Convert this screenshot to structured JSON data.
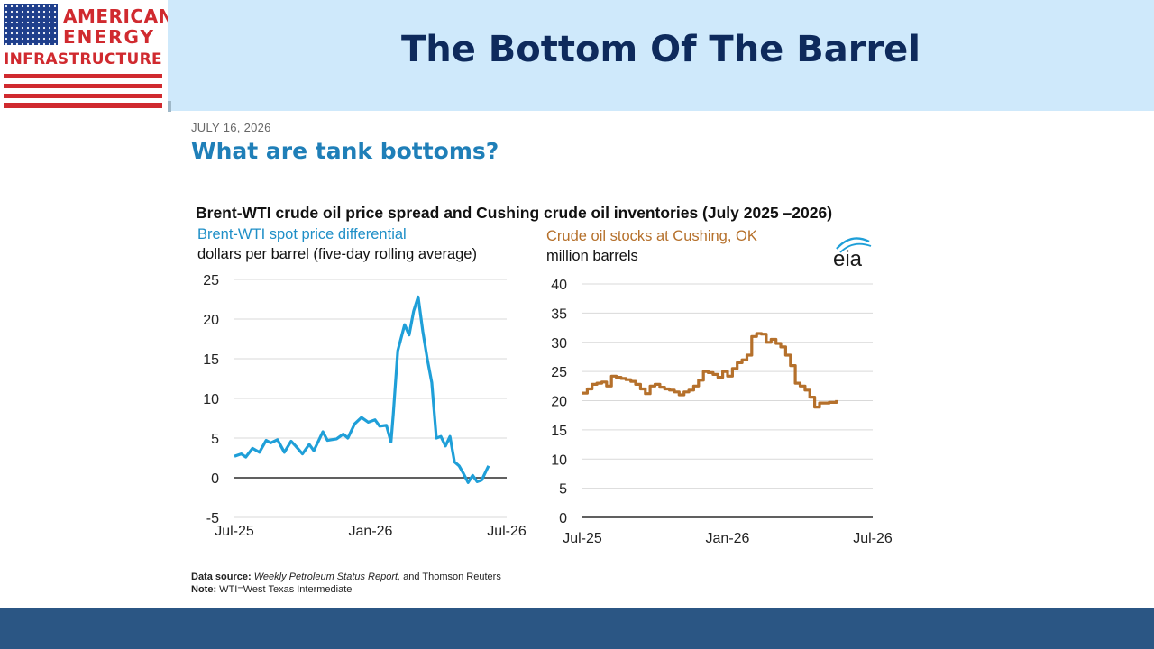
{
  "logo": {
    "line1": "AMERICAN",
    "line2": "ENERGY",
    "line3": "INFRASTRUCTURE"
  },
  "slide_title": "The Bottom Of The Barrel",
  "post": {
    "date": "JULY 16, 2026",
    "question": "What are tank bottoms?"
  },
  "chart_title": "Brent-WTI crude oil price spread and Cushing crude oil inventories (July 2025 –2026)",
  "eia_logo_text": "eia",
  "footnote": {
    "source_label": "Data source:",
    "source_italic": "Weekly Petroleum Status Report,",
    "source_rest": " and Thomson Reuters",
    "note_label": "Note:",
    "note_text": " WTI=West Texas Intermediate"
  },
  "colors": {
    "spread_line": "#1f9fd8",
    "stocks_line": "#b5702b",
    "header_band": "#cfe9fb",
    "footer_bar": "#2b5684"
  },
  "chart_data": [
    {
      "type": "line",
      "subtitle": "Brent-WTI spot price differential",
      "ylabel": "dollars per barrel (five-day rolling average)",
      "ylim": [
        -5,
        25
      ],
      "yticks": [
        25,
        20,
        15,
        10,
        5,
        0,
        -5
      ],
      "xlim": [
        0,
        12
      ],
      "xticks": [
        {
          "label": "Jul-25",
          "x": 0
        },
        {
          "label": "Jan-26",
          "x": 6
        },
        {
          "label": "Jul-26",
          "x": 12
        }
      ],
      "grid": true,
      "series": [
        {
          "values": [
            [
              0,
              2.7
            ],
            [
              0.3,
              3.0
            ],
            [
              0.5,
              2.6
            ],
            [
              0.8,
              3.7
            ],
            [
              1.1,
              3.2
            ],
            [
              1.4,
              4.7
            ],
            [
              1.6,
              4.4
            ],
            [
              1.9,
              4.8
            ],
            [
              2.2,
              3.2
            ],
            [
              2.5,
              4.6
            ],
            [
              2.7,
              4.0
            ],
            [
              3.0,
              3.0
            ],
            [
              3.3,
              4.2
            ],
            [
              3.5,
              3.4
            ],
            [
              3.9,
              5.8
            ],
            [
              4.1,
              4.7
            ],
            [
              4.5,
              4.9
            ],
            [
              4.8,
              5.5
            ],
            [
              5.0,
              5.0
            ],
            [
              5.3,
              6.8
            ],
            [
              5.6,
              7.6
            ],
            [
              5.9,
              7.0
            ],
            [
              6.2,
              7.3
            ],
            [
              6.4,
              6.5
            ],
            [
              6.7,
              6.6
            ],
            [
              6.9,
              4.5
            ],
            [
              7.0,
              8.0
            ],
            [
              7.2,
              16.0
            ],
            [
              7.5,
              19.3
            ],
            [
              7.7,
              18.0
            ],
            [
              7.9,
              21.0
            ],
            [
              8.1,
              22.8
            ],
            [
              8.3,
              18.5
            ],
            [
              8.5,
              15.0
            ],
            [
              8.7,
              12.0
            ],
            [
              8.9,
              5.0
            ],
            [
              9.1,
              5.2
            ],
            [
              9.3,
              4.0
            ],
            [
              9.5,
              5.2
            ],
            [
              9.7,
              2.0
            ],
            [
              9.9,
              1.5
            ],
            [
              10.1,
              0.5
            ],
            [
              10.3,
              -0.6
            ],
            [
              10.5,
              0.3
            ],
            [
              10.7,
              -0.5
            ],
            [
              10.9,
              -0.3
            ],
            [
              11.2,
              1.5
            ]
          ]
        }
      ]
    },
    {
      "type": "line",
      "subtitle": "Crude oil stocks at Cushing, OK",
      "ylabel": "million barrels",
      "ylim": [
        0,
        40
      ],
      "yticks": [
        40,
        35,
        30,
        25,
        20,
        15,
        10,
        5,
        0
      ],
      "xlim": [
        0,
        12
      ],
      "xticks": [
        {
          "label": "Jul-25",
          "x": 0
        },
        {
          "label": "Jan-26",
          "x": 6
        },
        {
          "label": "Jul-26",
          "x": 12
        }
      ],
      "grid": true,
      "series": [
        {
          "step": true,
          "values": [
            [
              0,
              21.3
            ],
            [
              0.2,
              22.0
            ],
            [
              0.4,
              22.8
            ],
            [
              0.6,
              23.0
            ],
            [
              0.8,
              23.2
            ],
            [
              1.0,
              22.5
            ],
            [
              1.2,
              24.2
            ],
            [
              1.4,
              24.0
            ],
            [
              1.6,
              23.8
            ],
            [
              1.8,
              23.6
            ],
            [
              2.0,
              23.3
            ],
            [
              2.2,
              22.8
            ],
            [
              2.4,
              22.0
            ],
            [
              2.6,
              21.2
            ],
            [
              2.8,
              22.5
            ],
            [
              3.0,
              22.8
            ],
            [
              3.2,
              22.3
            ],
            [
              3.4,
              22.0
            ],
            [
              3.6,
              21.8
            ],
            [
              3.8,
              21.5
            ],
            [
              4.0,
              21.0
            ],
            [
              4.2,
              21.5
            ],
            [
              4.4,
              21.8
            ],
            [
              4.6,
              22.5
            ],
            [
              4.8,
              23.5
            ],
            [
              5.0,
              25.0
            ],
            [
              5.2,
              24.8
            ],
            [
              5.4,
              24.5
            ],
            [
              5.6,
              24.0
            ],
            [
              5.8,
              25.0
            ],
            [
              6.0,
              24.2
            ],
            [
              6.2,
              25.5
            ],
            [
              6.4,
              26.5
            ],
            [
              6.6,
              27.0
            ],
            [
              6.8,
              27.8
            ],
            [
              7.0,
              31.0
            ],
            [
              7.2,
              31.5
            ],
            [
              7.4,
              31.4
            ],
            [
              7.6,
              30.0
            ],
            [
              7.8,
              30.5
            ],
            [
              8.0,
              29.8
            ],
            [
              8.2,
              29.2
            ],
            [
              8.4,
              27.8
            ],
            [
              8.6,
              26.0
            ],
            [
              8.8,
              23.0
            ],
            [
              9.0,
              22.5
            ],
            [
              9.2,
              21.8
            ],
            [
              9.4,
              20.6
            ],
            [
              9.6,
              18.9
            ],
            [
              9.8,
              19.6
            ],
            [
              10.2,
              19.7
            ],
            [
              10.5,
              20.1
            ]
          ]
        }
      ]
    }
  ]
}
